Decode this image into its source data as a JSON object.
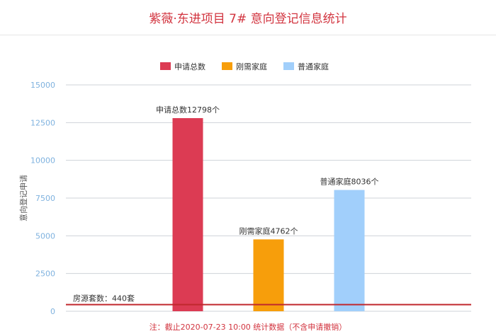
{
  "title": "紫薇·东进项目 7# 意向登记信息统计",
  "note": "注：截止2020-07-23 10:00 统计数据（不含申请撤销）",
  "colors": {
    "title": "#d2343f",
    "note": "#d2343f",
    "axis_tick": "#7fb2df",
    "grid": "#cfd3d8",
    "ref_line": "#c0282d"
  },
  "chart_data": {
    "type": "bar",
    "categories": [
      "申请总数",
      "刚需家庭",
      "普通家庭"
    ],
    "values": [
      12798,
      4762,
      8036
    ],
    "colors": [
      "#dc3b53",
      "#f79e0b",
      "#a1cffb"
    ],
    "data_labels": [
      "申请总数12798个",
      "刚需家庭4762个",
      "普通家庭8036个"
    ],
    "legend": [
      "申请总数",
      "刚需家庭",
      "普通家庭"
    ],
    "legend_position": "top-center",
    "ylabel": "意向登记申请",
    "ylim": [
      0,
      15000
    ],
    "yticks": [
      0,
      2500,
      5000,
      7500,
      10000,
      12500,
      15000
    ],
    "grid": true,
    "reference_line": {
      "value": 440,
      "label": "房源套数：440套"
    }
  }
}
